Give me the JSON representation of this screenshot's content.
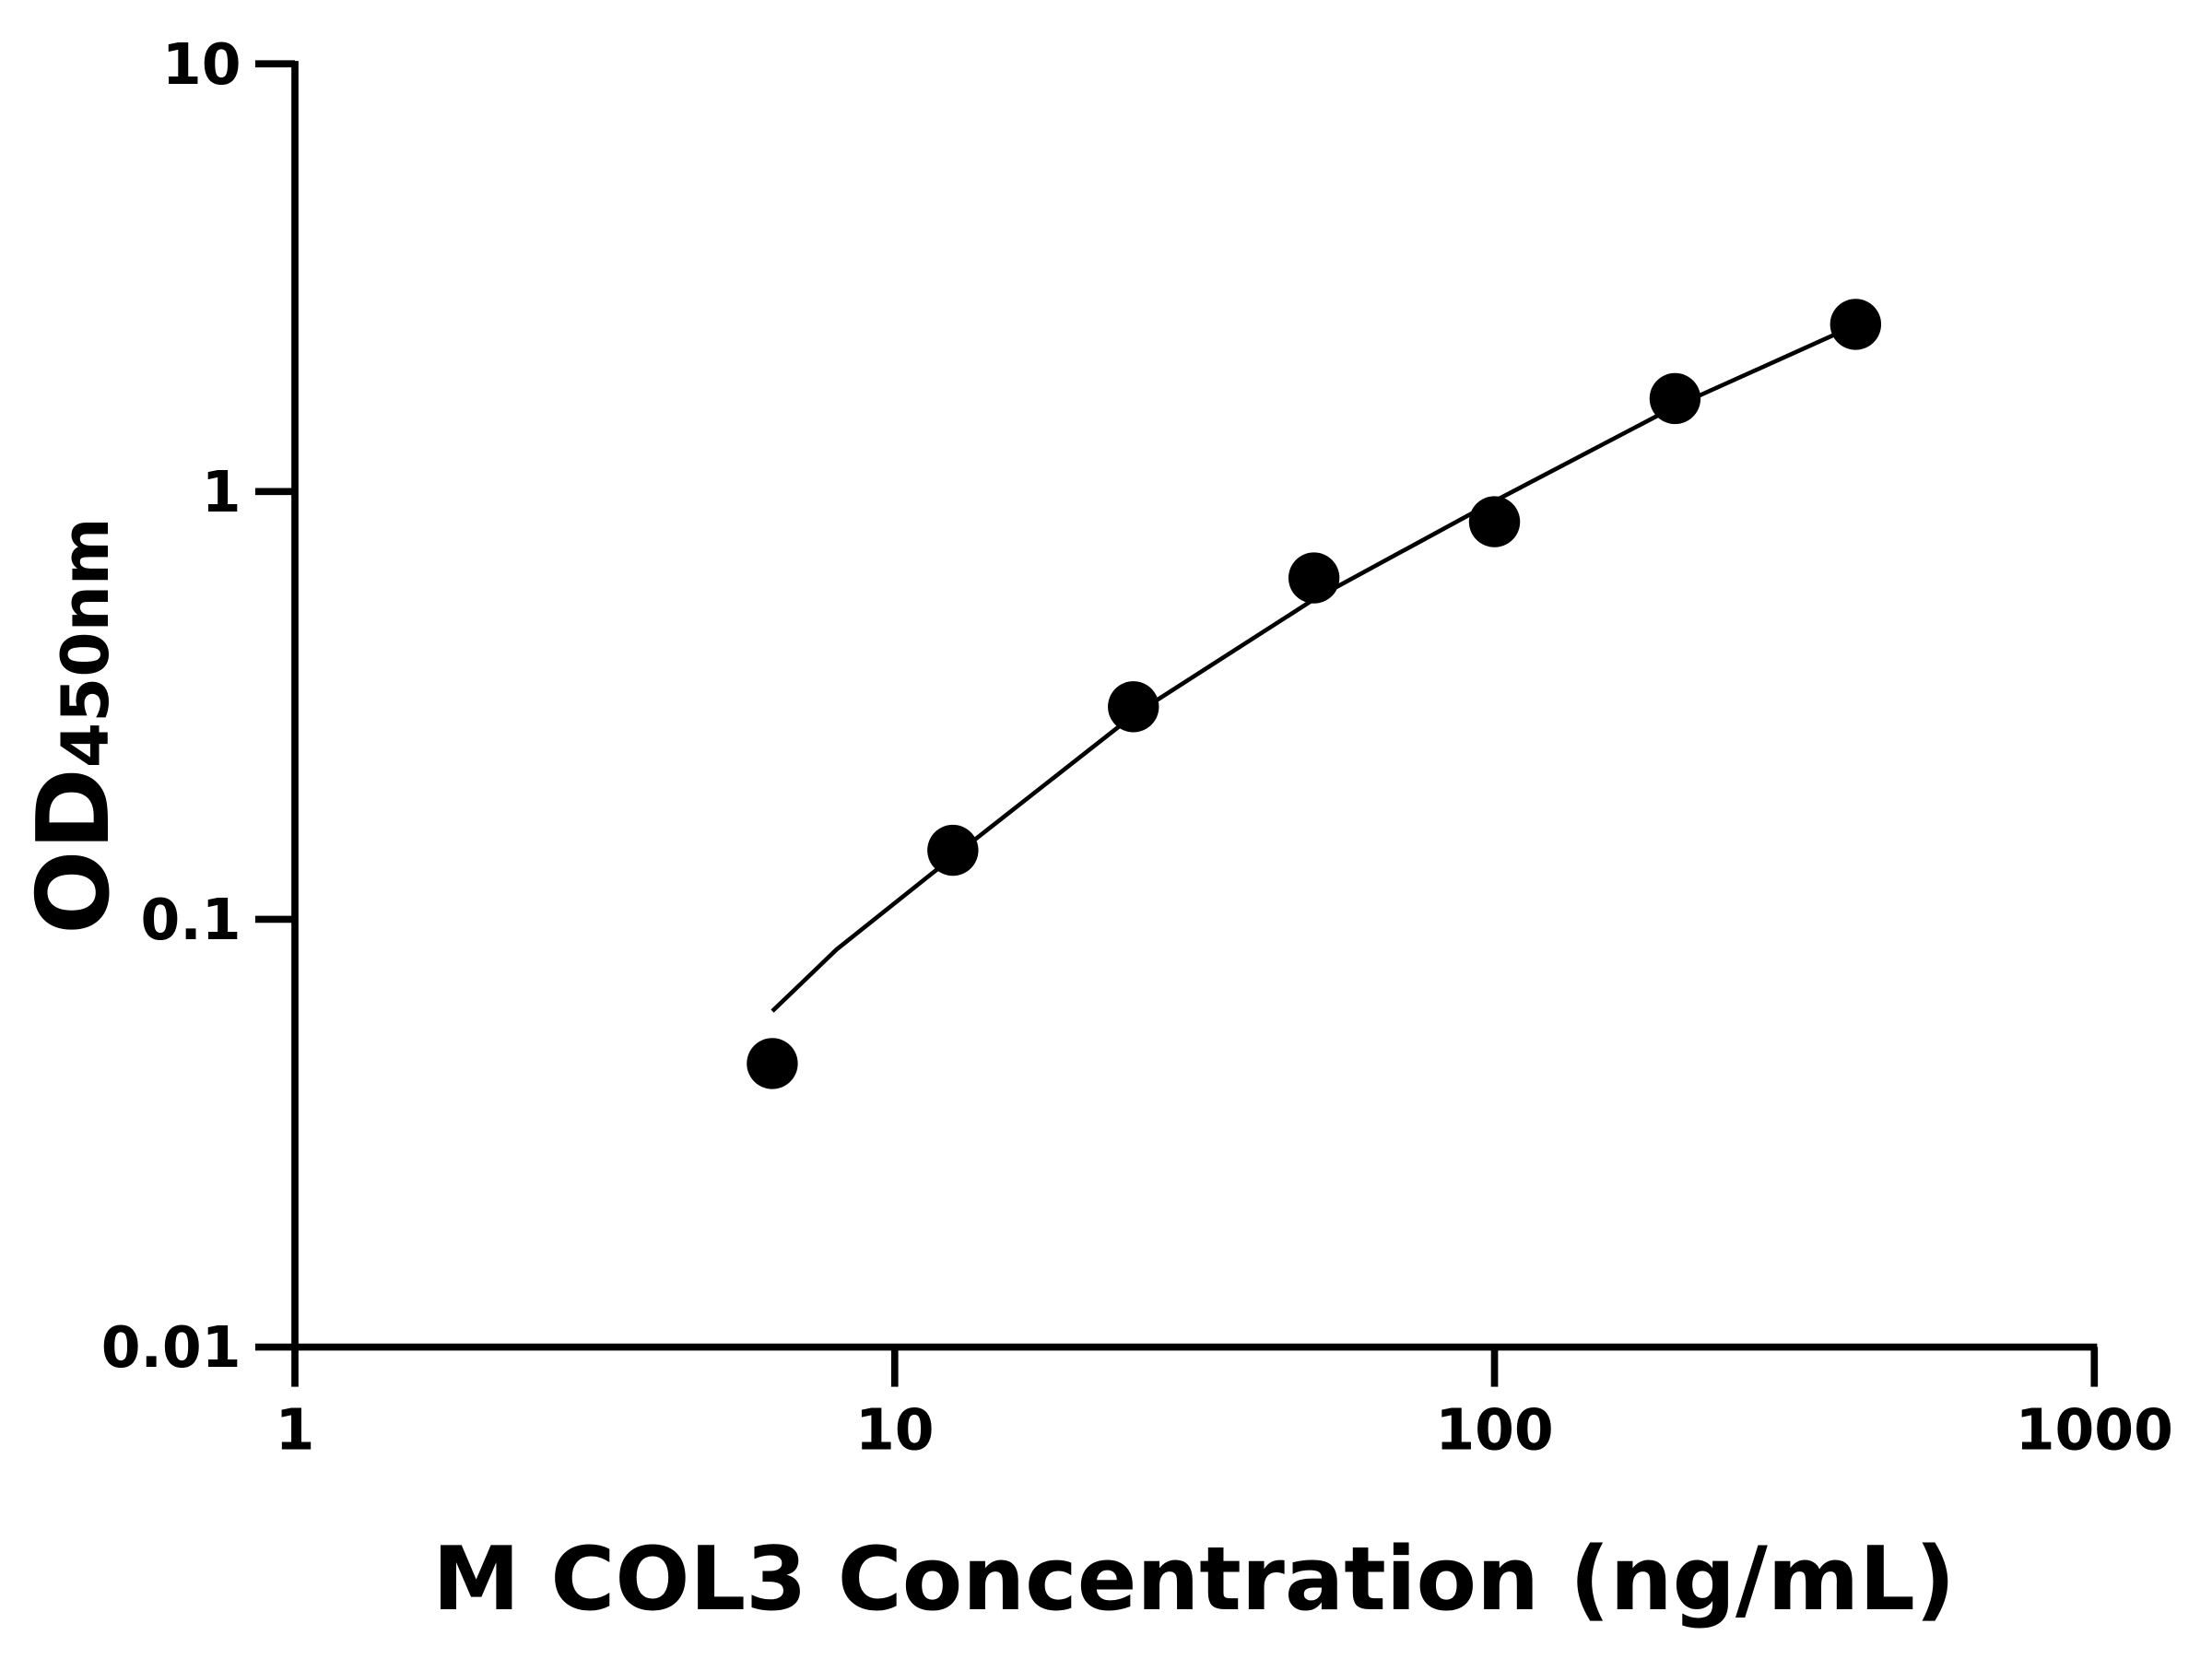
{
  "chart_data": {
    "type": "scatter",
    "xscale": "log",
    "yscale": "log",
    "xlim": [
      1,
      1000
    ],
    "ylim": [
      0.01,
      10
    ],
    "xticks": [
      1,
      10,
      100,
      1000
    ],
    "xtick_labels": [
      "1",
      "10",
      "100",
      "1000"
    ],
    "yticks": [
      0.01,
      0.1,
      1,
      10
    ],
    "ytick_labels": [
      "0.01",
      "0.1",
      "1",
      "10"
    ],
    "xlabel": "M COL3 Concentration (ng/mL)",
    "ylabel_main": "OD",
    "ylabel_sub": "450nm",
    "grid": false,
    "points": {
      "x": [
        6.25,
        12.5,
        25,
        50,
        100,
        200,
        400
      ],
      "y": [
        0.046,
        0.145,
        0.314,
        0.628,
        0.85,
        1.65,
        2.46
      ]
    },
    "fit_curve": {
      "x": [
        6.25,
        8,
        12.5,
        25,
        50,
        100,
        200,
        400
      ],
      "y": [
        0.061,
        0.085,
        0.14,
        0.3,
        0.56,
        0.95,
        1.58,
        2.45
      ]
    },
    "color": "#000000"
  }
}
